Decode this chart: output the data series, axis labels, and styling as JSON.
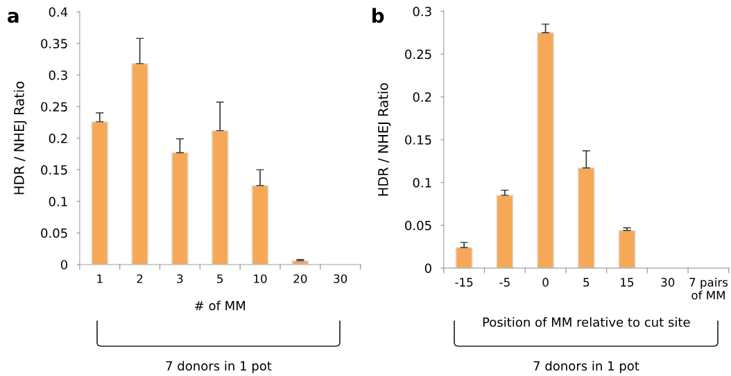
{
  "chart_data": [
    {
      "type": "bar",
      "categories": [
        "1",
        "2",
        "3",
        "5",
        "10",
        "20",
        "30"
      ],
      "xlabel": "# of MM",
      "ylabel": "HDR / NHEJ Ratio",
      "color": "#f7a857",
      "values": [
        0.226,
        0.318,
        0.177,
        0.212,
        0.125,
        0.006,
        0
      ],
      "errors": [
        [
          0.226,
          0.24
        ],
        [
          0.318,
          0.358
        ],
        [
          0.177,
          0.199
        ],
        [
          0.212,
          0.257
        ],
        [
          0.125,
          0.15
        ],
        [
          0.006,
          0.008
        ],
        null
      ],
      "ylim": [
        0,
        0.4
      ],
      "yticks": [
        0,
        0.05,
        0.1,
        0.15,
        0.2,
        0.25,
        0.3,
        0.35,
        0.4
      ],
      "grid": false,
      "annotations": [
        "a",
        "7 donors in 1 pot"
      ]
    },
    {
      "type": "bar",
      "categories": [
        "-15",
        "-5",
        "0",
        "5",
        "15",
        "30",
        "7 pairs\nof MM"
      ],
      "xlabel": "Position of MM relative to cut site",
      "ylabel": "HDR / NHEJ Ratio",
      "color": "#f7a857",
      "values": [
        0.024,
        0.085,
        0.275,
        0.117,
        0.044,
        0,
        0
      ],
      "errors": [
        [
          0.024,
          0.03
        ],
        [
          0.085,
          0.091
        ],
        [
          0.275,
          0.285
        ],
        [
          0.117,
          0.137
        ],
        [
          0.044,
          0.047
        ],
        null,
        null
      ],
      "ylim": [
        0,
        0.3
      ],
      "yticks": [
        0,
        0.05,
        0.1,
        0.15,
        0.2,
        0.25,
        0.3
      ],
      "grid": false,
      "annotations": [
        "b",
        "7 donors in 1 pot"
      ]
    }
  ]
}
